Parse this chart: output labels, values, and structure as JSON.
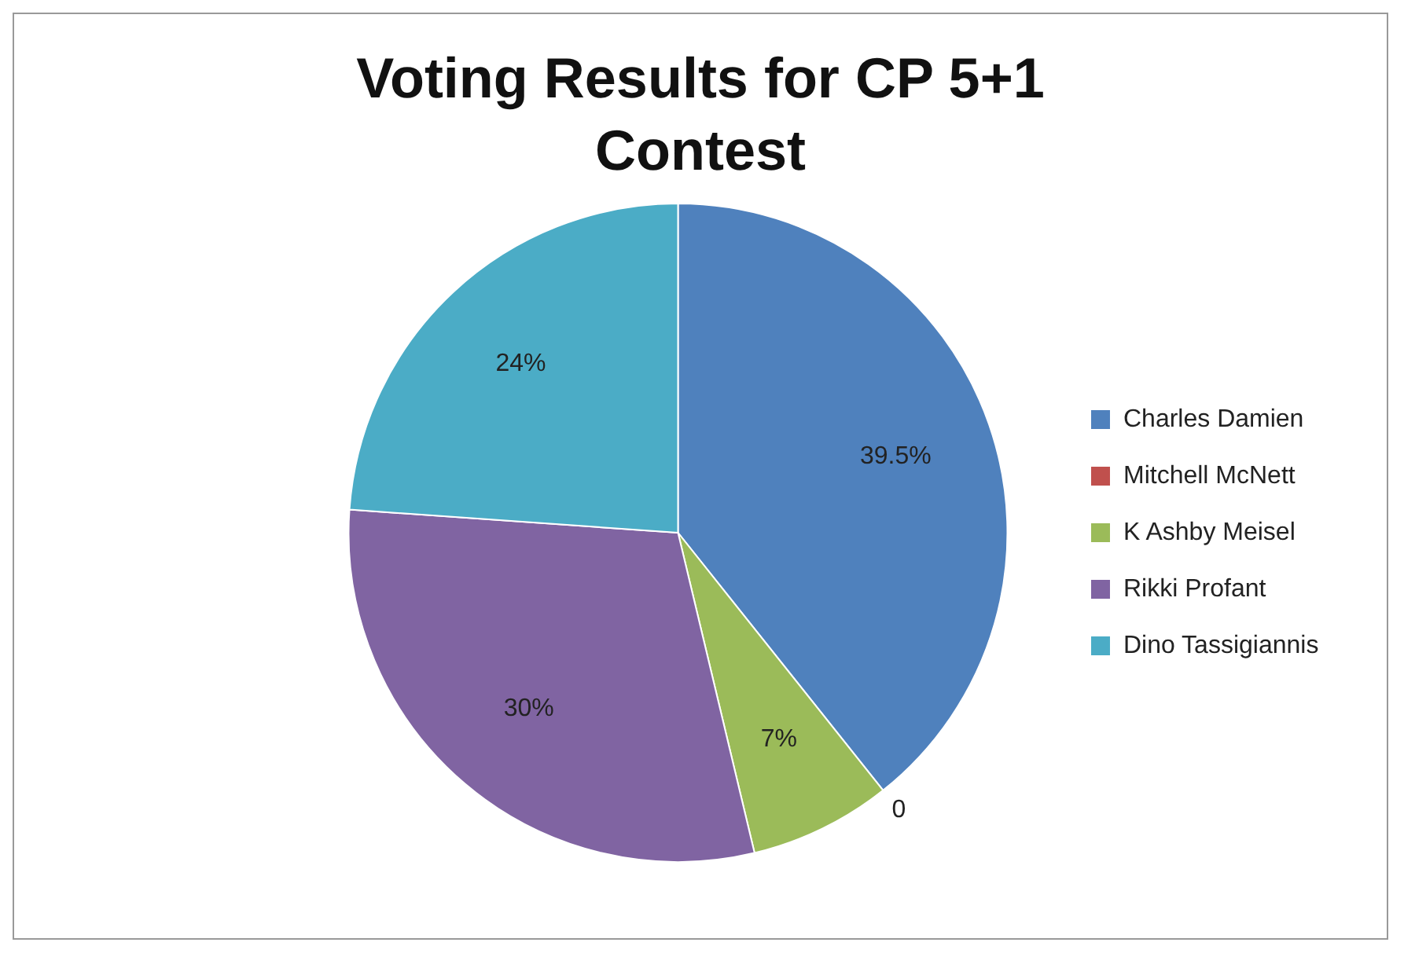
{
  "chart_data": {
    "type": "pie",
    "title": "Voting Results for CP 5+1 Contest",
    "categories": [
      "Charles Damien",
      "Mitchell McNett",
      "K Ashby Meisel",
      "Rikki Profant",
      "Dino Tassigiannis"
    ],
    "values": [
      39.5,
      0,
      7,
      30,
      24
    ],
    "value_labels": [
      "39.5%",
      "0",
      "7%",
      "30%",
      "24%"
    ],
    "colors": [
      "#4f81bd",
      "#c0504d",
      "#9bbb59",
      "#8064a2",
      "#4bacc6"
    ],
    "legend": "right"
  }
}
